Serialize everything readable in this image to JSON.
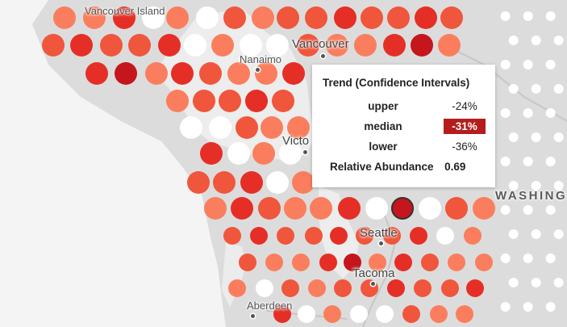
{
  "map": {
    "places": {
      "vancouver_island": "Vancouver Island",
      "vancouver": "Vancouver",
      "nanaimo": "Nanaimo",
      "victoria": "Victo",
      "seattle": "Seattle",
      "tacoma": "Tacoma",
      "aberdeen": "Aberdeen",
      "washington": "WASHING"
    },
    "colors": {
      "land": "#dcdcdc",
      "water": "#f4f4f4",
      "dark_red": "#c4161c",
      "red": "#e52f26",
      "orange_red": "#f0563c",
      "salmon": "#fa7e5e",
      "white_dot": "#ffffff"
    }
  },
  "tooltip": {
    "title": "Trend (Confidence Intervals)",
    "upper_label": "upper",
    "upper_value": "-24%",
    "median_label": "median",
    "median_value": "-31%",
    "lower_label": "lower",
    "lower_value": "-36%",
    "abundance_label": "Relative Abundance",
    "abundance_value": "0.69"
  }
}
